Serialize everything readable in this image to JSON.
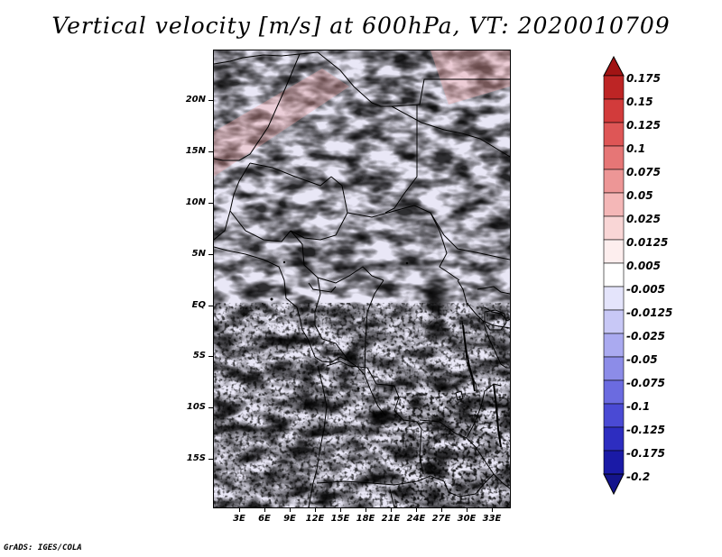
{
  "title": "Vertical velocity [m/s] at 600hPa, VT: 2020010709",
  "footer": "GrADS: IGES/COLA",
  "lat_labels": [
    "20N",
    "15N",
    "10N",
    "5N",
    "EQ",
    "5S",
    "10S",
    "15S"
  ],
  "lon_labels": [
    "3E",
    "6E",
    "9E",
    "12E",
    "15E",
    "18E",
    "21E",
    "24E",
    "27E",
    "30E",
    "33E"
  ],
  "colorbar": {
    "levels": [
      "0.175",
      "0.15",
      "0.125",
      "0.1",
      "0.075",
      "0.05",
      "0.025",
      "0.0125",
      "0.005",
      "-0.005",
      "-0.0125",
      "-0.025",
      "-0.05",
      "-0.075",
      "-0.1",
      "-0.125",
      "-0.175",
      "-0.2"
    ],
    "colors": [
      "#a11414",
      "#bd2525",
      "#d23b3b",
      "#de5656",
      "#e67676",
      "#ed9696",
      "#f4b7b7",
      "#f9d6d6",
      "#fdeeee",
      "#ffffff",
      "#e4e4fb",
      "#c8c8f6",
      "#aaaaf0",
      "#8c8ce8",
      "#6b6be0",
      "#4a4ad4",
      "#2d2dc0",
      "#1a1aa6",
      "#14148c"
    ]
  }
}
